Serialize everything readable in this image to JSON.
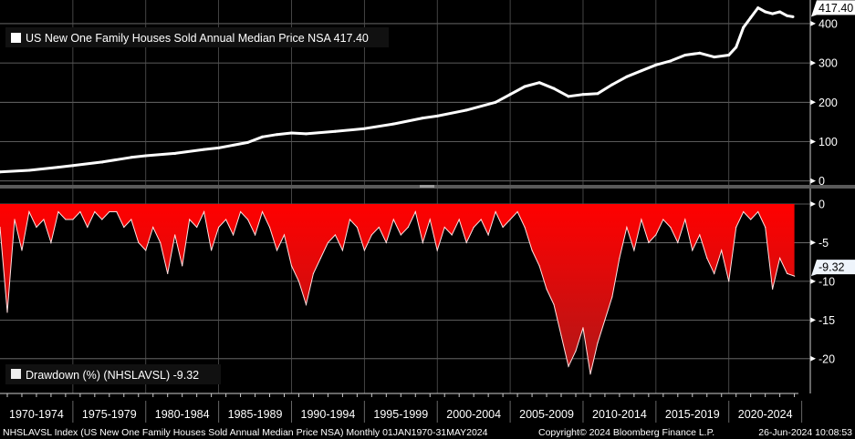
{
  "chart_data": [
    {
      "type": "line",
      "title": "US New One Family Houses Sold Annual Median Price NSA",
      "legend": "US New One Family Houses Sold Annual Median Price NSA 417.40",
      "last_value_label": "417.40",
      "ylim": [
        -10,
        460
      ],
      "yticks": [
        0,
        100,
        200,
        300,
        400
      ],
      "ytick_labels": [
        "0",
        "100",
        "200",
        "300",
        "400"
      ],
      "x": [
        1970,
        1972,
        1974,
        1975,
        1977,
        1979,
        1980,
        1982,
        1984,
        1985,
        1987,
        1988,
        1989,
        1990,
        1991,
        1993,
        1995,
        1997,
        1999,
        2000,
        2002,
        2004,
        2005,
        2006,
        2007,
        2008,
        2009,
        2010,
        2011,
        2012,
        2013,
        2014,
        2015,
        2016,
        2017,
        2018,
        2019,
        2020,
        2020.5,
        2021,
        2021.5,
        2022,
        2022.5,
        2023,
        2023.5,
        2024,
        2024.4
      ],
      "values": [
        23,
        27,
        35,
        39,
        48,
        60,
        64,
        70,
        80,
        84,
        98,
        112,
        118,
        122,
        120,
        126,
        133,
        145,
        160,
        165,
        180,
        200,
        220,
        240,
        250,
        235,
        215,
        220,
        222,
        245,
        265,
        280,
        295,
        305,
        320,
        325,
        315,
        320,
        340,
        390,
        415,
        440,
        430,
        425,
        430,
        420,
        417.4
      ],
      "color": "#ffffff"
    },
    {
      "type": "area",
      "title": "Drawdown (%) (NHSLAVSL)",
      "legend": "Drawdown (%) (NHSLAVSL) -9.32",
      "last_value_label": "-9.32",
      "ylim": [
        -24.5,
        2
      ],
      "yticks": [
        0,
        -5,
        -10,
        -15,
        -20
      ],
      "ytick_labels": [
        "0",
        "-5",
        "-10",
        "-15",
        "-20"
      ],
      "x_start": 1970,
      "x_step": 0.5,
      "values": [
        -3,
        -14,
        -2,
        -6,
        -1,
        -3,
        -2,
        -5,
        -1,
        -2,
        -2,
        -1,
        -3,
        -1,
        -2,
        -1,
        -1,
        -3,
        -2,
        -5,
        -6,
        -3,
        -5,
        -9,
        -4,
        -8,
        -2,
        -3,
        -1,
        -6,
        -3,
        -2,
        -4,
        -1,
        -2,
        -4,
        -1,
        -3,
        -6,
        -4,
        -8,
        -10,
        -13,
        -9,
        -7,
        -5,
        -4,
        -6,
        -2,
        -3,
        -6,
        -4,
        -3,
        -5,
        -2,
        -4,
        -3,
        -1,
        -5,
        -2,
        -6,
        -3,
        -4,
        -2,
        -5,
        -3,
        -2,
        -4,
        -1,
        -3,
        -2,
        -1,
        -3,
        -6,
        -8,
        -11,
        -13,
        -17,
        -21,
        -19,
        -16,
        -22,
        -18,
        -15,
        -12,
        -7,
        -3,
        -6,
        -2,
        -5,
        -4,
        -2,
        -3,
        -5,
        -2,
        -6,
        -4,
        -7,
        -9,
        -6,
        -10,
        -3,
        -1,
        -2,
        -1,
        -3,
        -11,
        -7,
        -9,
        -9.32
      ],
      "fill_color": "#ff0000",
      "line_color": "#ffe0e0"
    }
  ],
  "x_axis": {
    "period_labels": [
      "1970-1974",
      "1975-1979",
      "1980-1984",
      "1985-1989",
      "1990-1994",
      "1995-1999",
      "2000-2004",
      "2005-2009",
      "2010-2014",
      "2015-2019",
      "2020-2024"
    ],
    "range": [
      1970,
      2025.2
    ]
  },
  "footer": {
    "index": "NHSLAVSL Index (US New One Family Houses Sold Annual Median Price NSA)  Monthly 01JAN1970-31MAY2024",
    "copyright": "Copyright© 2024 Bloomberg Finance L.P.",
    "timestamp": "26-Jun-2024 10:08:53"
  }
}
